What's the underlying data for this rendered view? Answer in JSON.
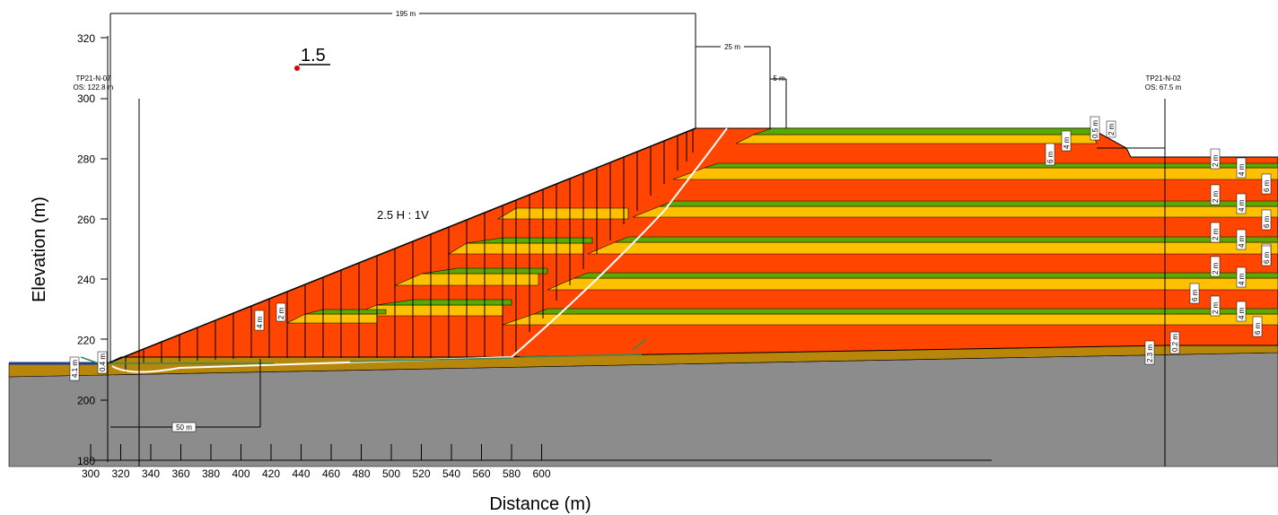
{
  "axes": {
    "x_title": "Distance (m)",
    "y_title": "Elevation (m)",
    "x_ticks": [
      "300",
      "320",
      "340",
      "360",
      "380",
      "400",
      "420",
      "440",
      "460",
      "480",
      "500",
      "520",
      "540",
      "560",
      "580",
      "600"
    ],
    "y_ticks": [
      "180",
      "200",
      "220",
      "240",
      "260",
      "280",
      "300",
      "320"
    ]
  },
  "annotations": {
    "factor_of_safety": "1.5",
    "slope_ratio": "2.5 H : 1V",
    "overall_width": "195 m",
    "crest_width": "25 m",
    "bench_5": "5 m",
    "base_50": "50 m",
    "left_41": "4.1 m",
    "left_04": "0.4 m",
    "slope_4m": "4 m",
    "slope_2m": "2 m",
    "right_4m": "4 m",
    "right_6m": "6 m",
    "right_05": "0.5 m",
    "right_2m": "2 m",
    "right_23": "2.3 m",
    "right_02": "0.2 m",
    "right_side_labels": [
      "2 m",
      "4 m",
      "6 m",
      "2 m",
      "4 m",
      "6 m",
      "2 m",
      "4 m",
      "6 m",
      "2 m",
      "4 m",
      "6 m",
      "6 m",
      "2 m",
      "4 m",
      "6 m"
    ]
  },
  "boreholes": {
    "left_name": "TP21-N-07",
    "left_offset": "OS: 122.8 m",
    "right_name": "TP21-N-02",
    "right_offset": "OS: 67.5 m"
  },
  "colors": {
    "orange_red": "#ff4500",
    "yellow": "#ffc000",
    "green": "#5aa800",
    "brown": "#b8860b",
    "gray": "#8c8c8c",
    "slip_surface": "#ffffff"
  }
}
